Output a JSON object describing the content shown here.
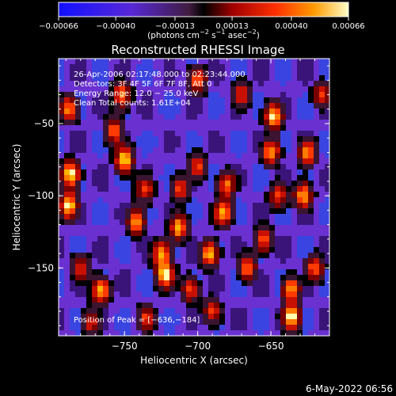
{
  "chart_data": {
    "type": "heatmap",
    "title": "Reconstructed RHESSI Image",
    "xlabel": "Heliocentric X (arcsec)",
    "ylabel": "Heliocentric Y (arcsec)",
    "xlim": [
      -795,
      -610
    ],
    "ylim": [
      -197,
      -5
    ],
    "x_ticks": [
      -750,
      -700,
      -650
    ],
    "x_tick_labels": [
      "−750",
      "−700",
      "−650"
    ],
    "y_ticks": [
      -50,
      -100,
      -150
    ],
    "y_tick_labels": [
      "−50",
      "−100",
      "−150"
    ],
    "colorbar": {
      "ticks": [
        -0.00066,
        -0.0004,
        -0.00013,
        0.00013,
        0.0004,
        0.00066
      ],
      "tick_labels": [
        "−0.00066",
        "−0.00040",
        "−0.00013",
        "0.00013",
        "0.00040",
        "0.00066"
      ],
      "unit_label": "(photons cm",
      "unit_exp1": "−2",
      "unit_mid": " s",
      "unit_exp2": "−1",
      "unit_end": " asec",
      "unit_exp3": "−2",
      "unit_close": ")"
    },
    "annotations": [
      "26‑Apr‑2006 02:17:48.000 to 02:23:44.000",
      "Detectors: 3F 4F 5F 6F 7F 8F, Att 0",
      "Energy Range: 12.0 − 25.0 keV",
      "Clean     Total counts: 1.61E+04"
    ],
    "peak_label": "Position of Peak = [−636,−184]",
    "peak_position": [
      -636,
      -184
    ],
    "blobs": [
      {
        "x": -787,
        "y": -85,
        "v": 1.0
      },
      {
        "x": -788,
        "y": -107,
        "v": 0.95
      },
      {
        "x": -788,
        "y": -40,
        "v": 0.75
      },
      {
        "x": -780,
        "y": -150,
        "v": 0.6
      },
      {
        "x": -766,
        "y": -166,
        "v": 0.85
      },
      {
        "x": -773,
        "y": -188,
        "v": 0.55
      },
      {
        "x": -750,
        "y": -75,
        "v": 0.95
      },
      {
        "x": -757,
        "y": -55,
        "v": 0.7
      },
      {
        "x": -752,
        "y": -30,
        "v": 0.7
      },
      {
        "x": -742,
        "y": -118,
        "v": 0.8
      },
      {
        "x": -736,
        "y": -95,
        "v": 0.6
      },
      {
        "x": -722,
        "y": -155,
        "v": 1.0
      },
      {
        "x": -725,
        "y": -140,
        "v": 0.75
      },
      {
        "x": -713,
        "y": -122,
        "v": 0.85
      },
      {
        "x": -705,
        "y": -165,
        "v": 0.6
      },
      {
        "x": -712,
        "y": -95,
        "v": 0.6
      },
      {
        "x": -735,
        "y": -185,
        "v": 0.6
      },
      {
        "x": -700,
        "y": -20,
        "v": 0.7
      },
      {
        "x": -700,
        "y": -80,
        "v": 0.6
      },
      {
        "x": -692,
        "y": -140,
        "v": 0.85
      },
      {
        "x": -683,
        "y": -112,
        "v": 0.85
      },
      {
        "x": -680,
        "y": -92,
        "v": 0.7
      },
      {
        "x": -690,
        "y": -180,
        "v": 0.6
      },
      {
        "x": -670,
        "y": -30,
        "v": 0.6
      },
      {
        "x": -666,
        "y": -150,
        "v": 0.7
      },
      {
        "x": -648,
        "y": -45,
        "v": 0.95
      },
      {
        "x": -650,
        "y": -70,
        "v": 0.8
      },
      {
        "x": -655,
        "y": -130,
        "v": 0.7
      },
      {
        "x": -645,
        "y": -100,
        "v": 0.6
      },
      {
        "x": -636,
        "y": -184,
        "v": 1.0
      },
      {
        "x": -636,
        "y": -165,
        "v": 0.8
      },
      {
        "x": -628,
        "y": -100,
        "v": 0.85
      },
      {
        "x": -625,
        "y": -70,
        "v": 0.8
      },
      {
        "x": -620,
        "y": -150,
        "v": 0.7
      },
      {
        "x": -615,
        "y": -30,
        "v": 0.6
      }
    ]
  },
  "footer": {
    "timestamp": "6‑May‑2022 06:56"
  }
}
